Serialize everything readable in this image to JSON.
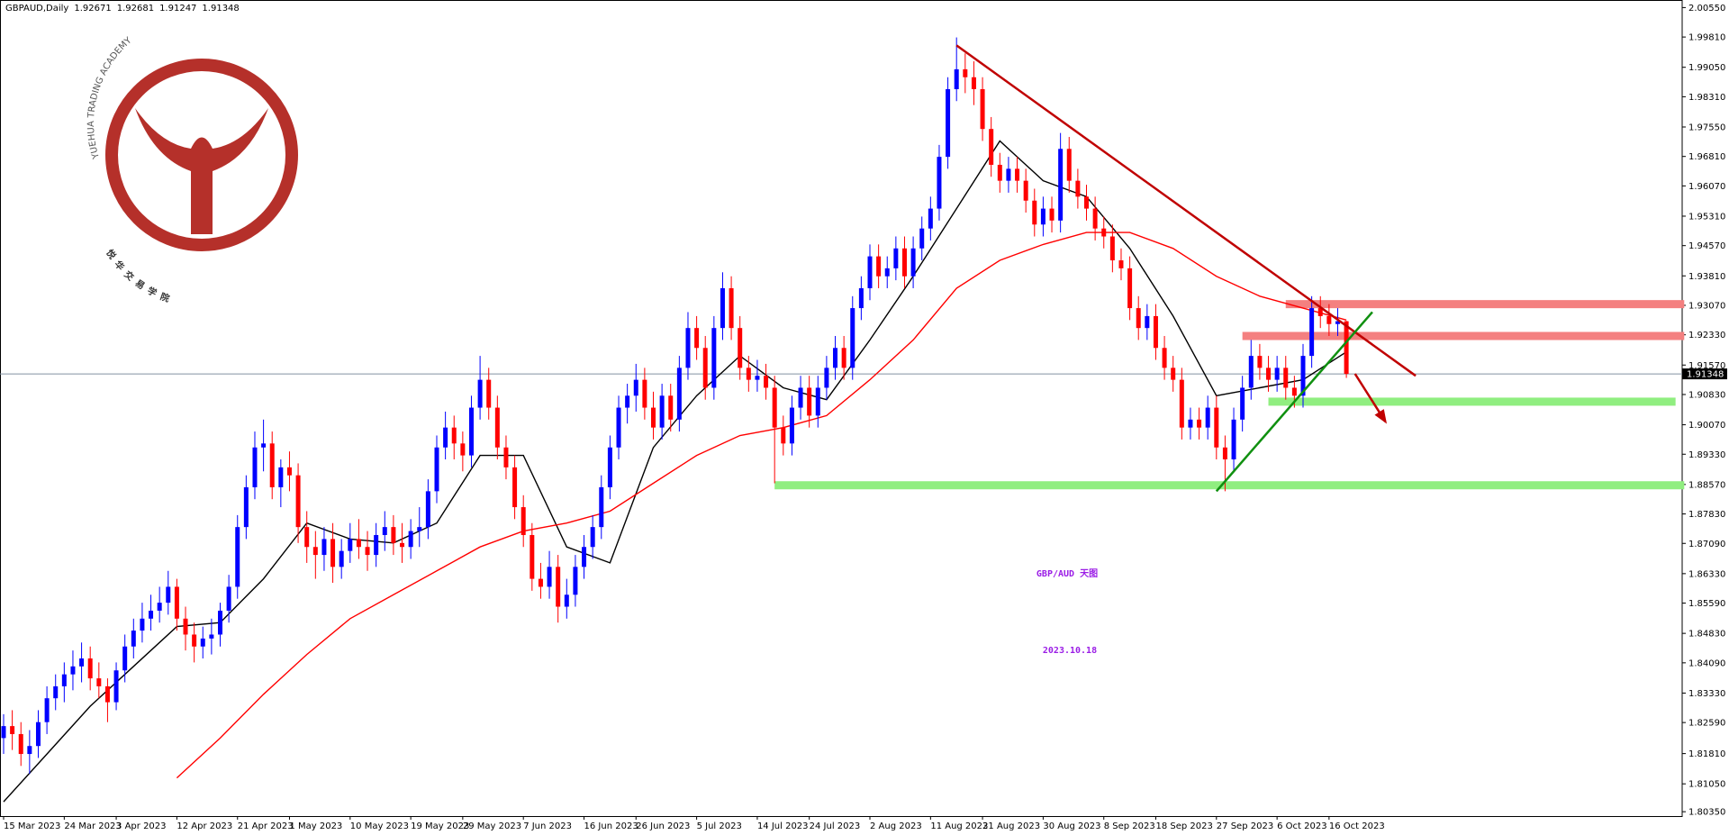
{
  "chart_data": {
    "type": "candlestick",
    "symbol": "GBPAUD,Daily",
    "title": "GBP/AUD 天图",
    "subtitle": "2023.10.18",
    "logo": {
      "text_en": "YUEHUA TRADING ACADEMY",
      "text_cn": "悦华交易学院"
    },
    "up_color": "#0000ff",
    "down_color": "#ff0000",
    "ylim": [
      1.8024,
      2.0074
    ],
    "xlim": [
      0,
      194
    ],
    "grid": false,
    "yticks": [
      {
        "value": 2.0055,
        "label": "2.00550"
      },
      {
        "value": 1.9981,
        "label": "1.99810"
      },
      {
        "value": 1.9905,
        "label": "1.99050"
      },
      {
        "value": 1.9831,
        "label": "1.98310"
      },
      {
        "value": 1.9755,
        "label": "1.97550"
      },
      {
        "value": 1.9681,
        "label": "1.96810"
      },
      {
        "value": 1.9607,
        "label": "1.96070"
      },
      {
        "value": 1.9531,
        "label": "1.95310"
      },
      {
        "value": 1.9457,
        "label": "1.94570"
      },
      {
        "value": 1.9381,
        "label": "1.93810"
      },
      {
        "value": 1.9307,
        "label": "1.93070"
      },
      {
        "value": 1.9233,
        "label": "1.92330"
      },
      {
        "value": 1.9157,
        "label": "1.91570"
      },
      {
        "value": 1.9083,
        "label": "1.90830"
      },
      {
        "value": 1.9007,
        "label": "1.90070"
      },
      {
        "value": 1.8933,
        "label": "1.89330"
      },
      {
        "value": 1.8857,
        "label": "1.88570"
      },
      {
        "value": 1.8783,
        "label": "1.87830"
      },
      {
        "value": 1.8709,
        "label": "1.87090"
      },
      {
        "value": 1.8633,
        "label": "1.86330"
      },
      {
        "value": 1.8559,
        "label": "1.85590"
      },
      {
        "value": 1.8483,
        "label": "1.84830"
      },
      {
        "value": 1.8409,
        "label": "1.84090"
      },
      {
        "value": 1.8333,
        "label": "1.83330"
      },
      {
        "value": 1.8259,
        "label": "1.82590"
      },
      {
        "value": 1.8181,
        "label": "1.81810"
      },
      {
        "value": 1.8105,
        "label": "1.81050"
      },
      {
        "value": 1.8035,
        "label": "1.80350"
      }
    ],
    "xticks": [
      {
        "value": 0,
        "label": "15 Mar 2023"
      },
      {
        "value": 7,
        "label": "24 Mar 2023"
      },
      {
        "value": 13,
        "label": "3 Apr 2023"
      },
      {
        "value": 20,
        "label": "12 Apr 2023"
      },
      {
        "value": 27,
        "label": "21 Apr 2023"
      },
      {
        "value": 33,
        "label": "1 May 2023"
      },
      {
        "value": 40,
        "label": "10 May 2023"
      },
      {
        "value": 47,
        "label": "19 May 2023"
      },
      {
        "value": 53,
        "label": "29 May 2023"
      },
      {
        "value": 60,
        "label": "7 Jun 2023"
      },
      {
        "value": 67,
        "label": "16 Jun 2023"
      },
      {
        "value": 73,
        "label": "26 Jun 2023"
      },
      {
        "value": 80,
        "label": "5 Jul 2023"
      },
      {
        "value": 87,
        "label": "14 Jul 2023"
      },
      {
        "value": 93,
        "label": "24 Jul 2023"
      },
      {
        "value": 100,
        "label": "2 Aug 2023"
      },
      {
        "value": 107,
        "label": "11 Aug 2023"
      },
      {
        "value": 113,
        "label": "21 Aug 2023"
      },
      {
        "value": 120,
        "label": "30 Aug 2023"
      },
      {
        "value": 127,
        "label": "8 Sep 2023"
      },
      {
        "value": 133,
        "label": "18 Sep 2023"
      },
      {
        "value": 140,
        "label": "27 Sep 2023"
      },
      {
        "value": 147,
        "label": "6 Oct 2023"
      },
      {
        "value": 153,
        "label": "16 Oct 2023"
      }
    ],
    "candles": [
      [
        1.822,
        1.828,
        1.818,
        1.825
      ],
      [
        1.825,
        1.829,
        1.819,
        1.823
      ],
      [
        1.823,
        1.826,
        1.815,
        1.818
      ],
      [
        1.818,
        1.824,
        1.813,
        1.82
      ],
      [
        1.82,
        1.829,
        1.817,
        1.826
      ],
      [
        1.826,
        1.835,
        1.823,
        1.832
      ],
      [
        1.832,
        1.838,
        1.829,
        1.835
      ],
      [
        1.835,
        1.841,
        1.831,
        1.838
      ],
      [
        1.838,
        1.844,
        1.834,
        1.84
      ],
      [
        1.84,
        1.846,
        1.836,
        1.842
      ],
      [
        1.842,
        1.845,
        1.834,
        1.837
      ],
      [
        1.837,
        1.841,
        1.832,
        1.835
      ],
      [
        1.835,
        1.837,
        1.826,
        1.831
      ],
      [
        1.831,
        1.841,
        1.829,
        1.839
      ],
      [
        1.839,
        1.848,
        1.836,
        1.845
      ],
      [
        1.845,
        1.852,
        1.842,
        1.849
      ],
      [
        1.849,
        1.856,
        1.846,
        1.852
      ],
      [
        1.852,
        1.858,
        1.849,
        1.854
      ],
      [
        1.854,
        1.86,
        1.851,
        1.856
      ],
      [
        1.856,
        1.864,
        1.853,
        1.86
      ],
      [
        1.86,
        1.862,
        1.849,
        1.852
      ],
      [
        1.852,
        1.855,
        1.844,
        1.848
      ],
      [
        1.848,
        1.851,
        1.841,
        1.845
      ],
      [
        1.845,
        1.85,
        1.842,
        1.847
      ],
      [
        1.847,
        1.852,
        1.843,
        1.848
      ],
      [
        1.848,
        1.856,
        1.845,
        1.854
      ],
      [
        1.854,
        1.863,
        1.851,
        1.86
      ],
      [
        1.86,
        1.878,
        1.857,
        1.875
      ],
      [
        1.875,
        1.888,
        1.872,
        1.885
      ],
      [
        1.885,
        1.899,
        1.882,
        1.895
      ],
      [
        1.895,
        1.902,
        1.889,
        1.896
      ],
      [
        1.896,
        1.899,
        1.882,
        1.885
      ],
      [
        1.885,
        1.892,
        1.88,
        1.89
      ],
      [
        1.89,
        1.894,
        1.884,
        1.888
      ],
      [
        1.888,
        1.891,
        1.871,
        1.875
      ],
      [
        1.875,
        1.879,
        1.866,
        1.87
      ],
      [
        1.87,
        1.874,
        1.862,
        1.868
      ],
      [
        1.868,
        1.875,
        1.864,
        1.872
      ],
      [
        1.872,
        1.876,
        1.861,
        1.865
      ],
      [
        1.865,
        1.872,
        1.862,
        1.869
      ],
      [
        1.869,
        1.876,
        1.866,
        1.872
      ],
      [
        1.872,
        1.877,
        1.867,
        1.87
      ],
      [
        1.87,
        1.874,
        1.864,
        1.868
      ],
      [
        1.868,
        1.876,
        1.865,
        1.873
      ],
      [
        1.873,
        1.879,
        1.869,
        1.875
      ],
      [
        1.875,
        1.878,
        1.868,
        1.871
      ],
      [
        1.871,
        1.876,
        1.866,
        1.87
      ],
      [
        1.87,
        1.877,
        1.867,
        1.874
      ],
      [
        1.874,
        1.88,
        1.87,
        1.875
      ],
      [
        1.875,
        1.887,
        1.872,
        1.884
      ],
      [
        1.884,
        1.898,
        1.881,
        1.895
      ],
      [
        1.895,
        1.904,
        1.892,
        1.9
      ],
      [
        1.9,
        1.903,
        1.892,
        1.896
      ],
      [
        1.896,
        1.899,
        1.889,
        1.893
      ],
      [
        1.893,
        1.908,
        1.89,
        1.905
      ],
      [
        1.905,
        1.918,
        1.902,
        1.912
      ],
      [
        1.912,
        1.915,
        1.902,
        1.905
      ],
      [
        1.905,
        1.908,
        1.892,
        1.895
      ],
      [
        1.895,
        1.898,
        1.887,
        1.89
      ],
      [
        1.89,
        1.893,
        1.877,
        1.88
      ],
      [
        1.88,
        1.883,
        1.87,
        1.873
      ],
      [
        1.873,
        1.876,
        1.859,
        1.862
      ],
      [
        1.862,
        1.866,
        1.857,
        1.86
      ],
      [
        1.86,
        1.869,
        1.857,
        1.865
      ],
      [
        1.865,
        1.868,
        1.851,
        1.855
      ],
      [
        1.855,
        1.862,
        1.852,
        1.858
      ],
      [
        1.858,
        1.868,
        1.855,
        1.865
      ],
      [
        1.865,
        1.873,
        1.862,
        1.87
      ],
      [
        1.87,
        1.878,
        1.867,
        1.875
      ],
      [
        1.875,
        1.888,
        1.872,
        1.885
      ],
      [
        1.885,
        1.898,
        1.882,
        1.895
      ],
      [
        1.895,
        1.908,
        1.892,
        1.905
      ],
      [
        1.905,
        1.911,
        1.901,
        1.908
      ],
      [
        1.908,
        1.916,
        1.904,
        1.912
      ],
      [
        1.912,
        1.915,
        1.902,
        1.905
      ],
      [
        1.905,
        1.909,
        1.897,
        1.9
      ],
      [
        1.9,
        1.911,
        1.897,
        1.908
      ],
      [
        1.908,
        1.911,
        1.899,
        1.902
      ],
      [
        1.902,
        1.918,
        1.899,
        1.915
      ],
      [
        1.915,
        1.929,
        1.912,
        1.925
      ],
      [
        1.925,
        1.928,
        1.917,
        1.92
      ],
      [
        1.92,
        1.923,
        1.907,
        1.91
      ],
      [
        1.91,
        1.928,
        1.907,
        1.925
      ],
      [
        1.925,
        1.939,
        1.922,
        1.935
      ],
      [
        1.935,
        1.938,
        1.922,
        1.925
      ],
      [
        1.925,
        1.928,
        1.912,
        1.915
      ],
      [
        1.915,
        1.918,
        1.909,
        1.912
      ],
      [
        1.912,
        1.917,
        1.909,
        1.913
      ],
      [
        1.913,
        1.916,
        1.907,
        1.91
      ],
      [
        1.91,
        1.913,
        1.886,
        1.9
      ],
      [
        1.9,
        1.903,
        1.893,
        1.896
      ],
      [
        1.896,
        1.908,
        1.893,
        1.905
      ],
      [
        1.905,
        1.913,
        1.902,
        1.91
      ],
      [
        1.91,
        1.913,
        1.9,
        1.903
      ],
      [
        1.903,
        1.913,
        1.9,
        1.91
      ],
      [
        1.91,
        1.918,
        1.907,
        1.915
      ],
      [
        1.915,
        1.923,
        1.912,
        1.92
      ],
      [
        1.92,
        1.923,
        1.912,
        1.915
      ],
      [
        1.915,
        1.933,
        1.912,
        1.93
      ],
      [
        1.93,
        1.938,
        1.927,
        1.935
      ],
      [
        1.935,
        1.946,
        1.932,
        1.943
      ],
      [
        1.943,
        1.946,
        1.935,
        1.938
      ],
      [
        1.938,
        1.943,
        1.935,
        1.94
      ],
      [
        1.94,
        1.948,
        1.937,
        1.945
      ],
      [
        1.945,
        1.948,
        1.935,
        1.938
      ],
      [
        1.938,
        1.948,
        1.935,
        1.945
      ],
      [
        1.945,
        1.953,
        1.942,
        1.95
      ],
      [
        1.95,
        1.958,
        1.947,
        1.955
      ],
      [
        1.955,
        1.971,
        1.952,
        1.968
      ],
      [
        1.968,
        1.988,
        1.965,
        1.985
      ],
      [
        1.985,
        1.998,
        1.982,
        1.99
      ],
      [
        1.99,
        1.994,
        1.984,
        1.988
      ],
      [
        1.988,
        1.992,
        1.981,
        1.985
      ],
      [
        1.985,
        1.988,
        1.972,
        1.975
      ],
      [
        1.975,
        1.978,
        1.963,
        1.966
      ],
      [
        1.966,
        1.969,
        1.959,
        1.962
      ],
      [
        1.962,
        1.968,
        1.959,
        1.965
      ],
      [
        1.965,
        1.968,
        1.959,
        1.962
      ],
      [
        1.962,
        1.965,
        1.954,
        1.957
      ],
      [
        1.957,
        1.96,
        1.948,
        1.951
      ],
      [
        1.951,
        1.958,
        1.948,
        1.955
      ],
      [
        1.955,
        1.958,
        1.949,
        1.952
      ],
      [
        1.952,
        1.974,
        1.949,
        1.97
      ],
      [
        1.97,
        1.973,
        1.959,
        1.962
      ],
      [
        1.962,
        1.965,
        1.955,
        1.958
      ],
      [
        1.958,
        1.961,
        1.952,
        1.955
      ],
      [
        1.955,
        1.958,
        1.947,
        1.95
      ],
      [
        1.95,
        1.953,
        1.945,
        1.948
      ],
      [
        1.948,
        1.951,
        1.939,
        1.942
      ],
      [
        1.942,
        1.945,
        1.937,
        1.94
      ],
      [
        1.94,
        1.943,
        1.927,
        1.93
      ],
      [
        1.93,
        1.933,
        1.922,
        1.925
      ],
      [
        1.925,
        1.931,
        1.922,
        1.928
      ],
      [
        1.928,
        1.931,
        1.917,
        1.92
      ],
      [
        1.92,
        1.923,
        1.912,
        1.915
      ],
      [
        1.915,
        1.918,
        1.909,
        1.912
      ],
      [
        1.912,
        1.915,
        1.897,
        1.9
      ],
      [
        1.9,
        1.905,
        1.897,
        1.902
      ],
      [
        1.902,
        1.905,
        1.897,
        1.9
      ],
      [
        1.9,
        1.908,
        1.897,
        1.905
      ],
      [
        1.905,
        1.908,
        1.892,
        1.895
      ],
      [
        1.895,
        1.898,
        1.884,
        1.892
      ],
      [
        1.892,
        1.905,
        1.889,
        1.902
      ],
      [
        1.902,
        1.913,
        1.899,
        1.91
      ],
      [
        1.91,
        1.922,
        1.907,
        1.918
      ],
      [
        1.918,
        1.921,
        1.912,
        1.915
      ],
      [
        1.915,
        1.918,
        1.909,
        1.912
      ],
      [
        1.912,
        1.918,
        1.909,
        1.915
      ],
      [
        1.915,
        1.918,
        1.907,
        1.91
      ],
      [
        1.91,
        1.913,
        1.905,
        1.908
      ],
      [
        1.908,
        1.921,
        1.905,
        1.918
      ],
      [
        1.918,
        1.933,
        1.915,
        1.93
      ],
      [
        1.93,
        1.933,
        1.925,
        1.928
      ],
      [
        1.928,
        1.931,
        1.923,
        1.926
      ],
      [
        1.926,
        1.93,
        1.923,
        1.92671
      ],
      [
        1.92671,
        1.92681,
        1.91247,
        1.91348
      ]
    ],
    "series": [
      {
        "color": "#000000",
        "x": [
          0,
          5,
          10,
          15,
          20,
          25,
          30,
          35,
          40,
          45,
          50,
          55,
          60,
          65,
          70,
          75,
          80,
          85,
          90,
          95,
          100,
          105,
          110,
          115,
          120,
          125,
          130,
          135,
          140,
          145,
          150,
          155
        ],
        "values": [
          1.806,
          1.818,
          1.83,
          1.84,
          1.85,
          1.851,
          1.862,
          1.876,
          1.872,
          1.871,
          1.876,
          1.893,
          1.893,
          1.87,
          1.866,
          1.895,
          1.908,
          1.918,
          1.91,
          1.907,
          1.922,
          1.938,
          1.955,
          1.972,
          1.962,
          1.958,
          1.945,
          1.928,
          1.908,
          1.91,
          1.912,
          1.919
        ]
      },
      {
        "color": "#ff0000",
        "x": [
          0,
          5,
          10,
          15,
          20,
          25,
          30,
          35,
          40,
          45,
          50,
          55,
          60,
          65,
          70,
          75,
          80,
          85,
          90,
          95,
          100,
          105,
          110,
          115,
          120,
          125,
          130,
          135,
          140,
          145,
          150,
          155
        ],
        "values": [
          null,
          null,
          null,
          null,
          1.812,
          1.822,
          1.833,
          1.843,
          1.852,
          1.858,
          1.864,
          1.87,
          1.874,
          1.876,
          1.879,
          1.886,
          1.893,
          1.898,
          1.9,
          1.903,
          1.912,
          1.922,
          1.935,
          1.942,
          1.946,
          1.949,
          1.949,
          1.945,
          1.938,
          1.933,
          1.93,
          1.927
        ]
      }
    ],
    "annotations": {
      "zones": [
        {
          "price": 1.931,
          "from": 148,
          "to": 194,
          "color": "#f48080"
        },
        {
          "price": 1.923,
          "from": 143,
          "to": 194,
          "color": "#f48080"
        },
        {
          "price": 1.9065,
          "from": 146,
          "to": 193,
          "color": "#90ee80"
        },
        {
          "price": 1.8855,
          "from": 89,
          "to": 194,
          "color": "#90ee80"
        }
      ],
      "trendlines": [
        {
          "x": [
            110,
            163
          ],
          "y": [
            1.996,
            1.913
          ],
          "color": "#c00000"
        },
        {
          "x": [
            140,
            158
          ],
          "y": [
            1.884,
            1.929
          ],
          "color": "#109010"
        }
      ],
      "arrow": {
        "x": [
          156,
          159.5
        ],
        "y": [
          1.9135,
          1.9015
        ],
        "color": "#c00000"
      }
    }
  }
}
